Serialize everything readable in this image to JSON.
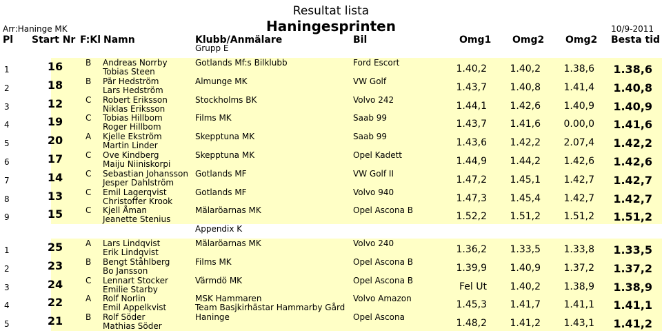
{
  "header": {
    "title": "Resultat lista",
    "race": "Haningesprinten",
    "organizer": "Arr:Haninge MK",
    "date": "10/9-2011"
  },
  "columns": {
    "pl": "Pl",
    "start_nr": "Start Nr",
    "fkl": "F:Kl",
    "namn": "Namn",
    "klubb": "Klubb/Anmälare",
    "bil": "Bil",
    "omg1": "Omg1",
    "omg2": "Omg2",
    "omg3": "Omg2",
    "best": "Besta tid"
  },
  "groups": [
    {
      "title": "Grupp E",
      "rows": [
        {
          "pl": "1",
          "nr": "16",
          "kl": "B",
          "driver": "Andreas Norrby",
          "codriver": "Tobias Steen",
          "club": "Gotlands Mf:s Bilklubb",
          "club2": "",
          "car": "Ford Escort",
          "omg1": "1.40,2",
          "omg2": "1.40,2",
          "omg3": "1.38,6",
          "best": "1.38,6"
        },
        {
          "pl": "2",
          "nr": "18",
          "kl": "B",
          "driver": "Pär Hedström",
          "codriver": "Lars Hedström",
          "club": "Almunge MK",
          "club2": "",
          "car": "VW Golf",
          "omg1": "1.43,7",
          "omg2": "1.40,8",
          "omg3": "1.41,4",
          "best": "1.40,8"
        },
        {
          "pl": "3",
          "nr": "12",
          "kl": "C",
          "driver": "Robert Eriksson",
          "codriver": "Niklas Eriksson",
          "club": "Stockholms BK",
          "club2": "",
          "car": "Volvo 242",
          "omg1": "1.44,1",
          "omg2": "1.42,6",
          "omg3": "1.40,9",
          "best": "1.40,9"
        },
        {
          "pl": "4",
          "nr": "19",
          "kl": "C",
          "driver": "Tobias Hillbom",
          "codriver": "Roger Hillbom",
          "club": "Films MK",
          "club2": "",
          "car": "Saab 99",
          "omg1": "1.43,7",
          "omg2": "1.41,6",
          "omg3": "0.00,0",
          "best": "1.41,6"
        },
        {
          "pl": "5",
          "nr": "20",
          "kl": "A",
          "driver": "Kjelle Ekström",
          "codriver": "Martin Linder",
          "club": "Skepptuna MK",
          "club2": "",
          "car": "Saab 99",
          "omg1": "1.43,6",
          "omg2": "1.42,2",
          "omg3": "2.07,4",
          "best": "1.42,2"
        },
        {
          "pl": "6",
          "nr": "17",
          "kl": "C",
          "driver": "Ove Kindberg",
          "codriver": "Maiju Niiniskorpi",
          "club": "Skepptuna MK",
          "club2": "",
          "car": "Opel Kadett",
          "omg1": "1.44,9",
          "omg2": "1.44,2",
          "omg3": "1.42,6",
          "best": "1.42,6"
        },
        {
          "pl": "7",
          "nr": "14",
          "kl": "C",
          "driver": "Sebastian Johansson",
          "codriver": "Jesper Dahlström",
          "club": "Gotlands MF",
          "club2": "",
          "car": "VW Golf II",
          "omg1": "1.47,2",
          "omg2": "1.45,1",
          "omg3": "1.42,7",
          "best": "1.42,7"
        },
        {
          "pl": "8",
          "nr": "13",
          "kl": "C",
          "driver": "Emil Lagerqvist",
          "codriver": "Christoffer Krook",
          "club": "Gotlands MF",
          "club2": "",
          "car": "Volvo 940",
          "omg1": "1.47,3",
          "omg2": "1.45,4",
          "omg3": "1.42,7",
          "best": "1.42,7"
        },
        {
          "pl": "9",
          "nr": "15",
          "kl": "C",
          "driver": "Kjell Åman",
          "codriver": "Jeanette Stenius",
          "club": "Mälaröarnas MK",
          "club2": "",
          "car": "Opel Ascona B",
          "omg1": "1.52,2",
          "omg2": "1.51,2",
          "omg3": "1.51,2",
          "best": "1.51,2"
        }
      ]
    },
    {
      "title": "Appendix K",
      "rows": [
        {
          "pl": "1",
          "nr": "25",
          "kl": "A",
          "driver": "Lars Lindqvist",
          "codriver": "Erik Lindqvist",
          "club": "Mälaröarnas MK",
          "club2": "",
          "car": "Volvo 240",
          "omg1": "1.36,2",
          "omg2": "1.33,5",
          "omg3": "1.33,8",
          "best": "1.33,5"
        },
        {
          "pl": "2",
          "nr": "23",
          "kl": "B",
          "driver": "Bengt Ståhlberg",
          "codriver": "Bo Jansson",
          "club": "Films MK",
          "club2": "",
          "car": "Opel Ascona B",
          "omg1": "1.39,9",
          "omg2": "1.40,9",
          "omg3": "1.37,2",
          "best": "1.37,2"
        },
        {
          "pl": "3",
          "nr": "24",
          "kl": "C",
          "driver": "Lennart Stocker",
          "codriver": "Emilie Starby",
          "club": "Värmdö MK",
          "club2": "",
          "car": "Opel Ascona B",
          "omg1": "Fel Ut",
          "omg2": "1.40,2",
          "omg3": "1.38,9",
          "best": "1.38,9"
        },
        {
          "pl": "4",
          "nr": "22",
          "kl": "A",
          "driver": "Rolf Norlin",
          "codriver": "Emil Appelkvist",
          "club": "MSK Hammaren",
          "club2": "Team Basjkirhästar Hammarby Gård",
          "car": "Volvo Amazon",
          "omg1": "1.45,3",
          "omg2": "1.41,7",
          "omg3": "1.41,1",
          "best": "1.41,1"
        },
        {
          "pl": "5",
          "nr": "21",
          "kl": "B",
          "driver": "Rolf Söder",
          "codriver": "Mathias Söder",
          "club": "Haninge",
          "club2": "",
          "car": "Opel Ascona",
          "omg1": "1.48,2",
          "omg2": "1.41,2",
          "omg3": "1.43,1",
          "best": "1.41,2"
        }
      ]
    }
  ]
}
